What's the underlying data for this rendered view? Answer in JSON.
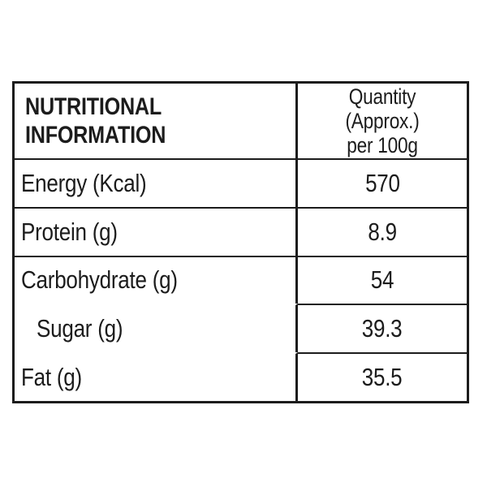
{
  "table": {
    "header": {
      "col1": "NUTRITIONAL\nINFORMATION",
      "col2": "Quantity (Approx.)\nper 100g"
    },
    "rows": [
      {
        "label": "Energy (Kcal)",
        "value": "570",
        "indent": false
      },
      {
        "label": "Protein (g)",
        "value": "8.9",
        "indent": false
      },
      {
        "label": "Carbohydrate (g)",
        "value": "54",
        "indent": false
      },
      {
        "label": "Sugar (g)",
        "value": "39.3",
        "indent": true
      },
      {
        "label": "Fat (g)",
        "value": "35.5",
        "indent": false
      }
    ]
  },
  "colors": {
    "text": "#1c1c1c",
    "border": "#1c1c1c",
    "background": "#ffffff"
  }
}
